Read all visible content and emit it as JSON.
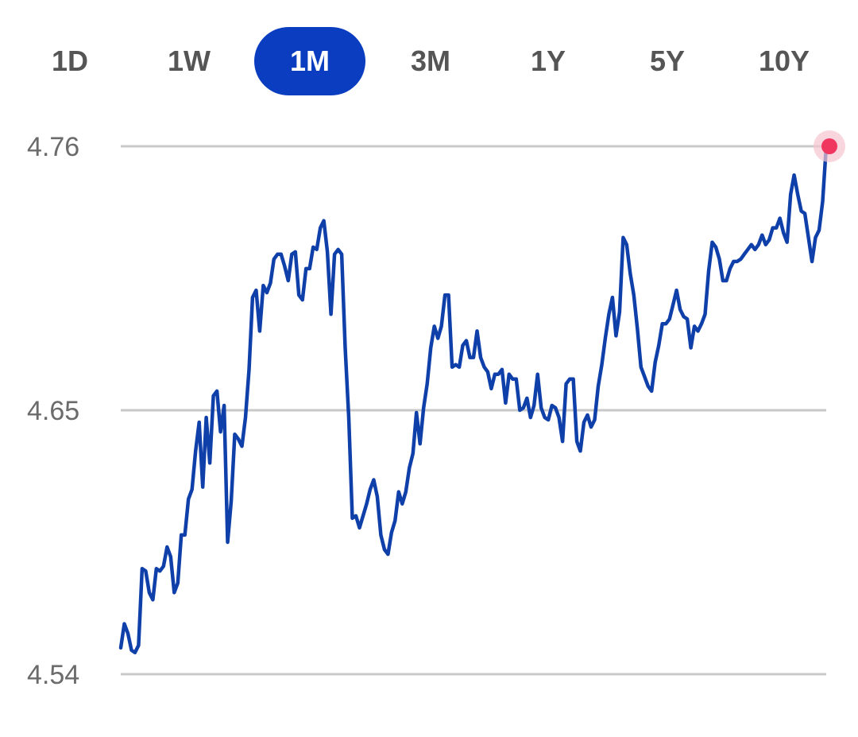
{
  "range_tabs": [
    {
      "label": "1D",
      "active": false
    },
    {
      "label": "1W",
      "active": false
    },
    {
      "label": "1M",
      "active": true
    },
    {
      "label": "3M",
      "active": false
    },
    {
      "label": "1Y",
      "active": false
    },
    {
      "label": "5Y",
      "active": false
    },
    {
      "label": "10Y",
      "active": false
    }
  ],
  "colors": {
    "accent": "#0a3dbf",
    "line": "#0f3fa8",
    "gridline": "#c8c8c8",
    "marker": "#f0365f",
    "marker_halo": "#f7c4cf"
  },
  "chart_data": {
    "type": "line",
    "title": "",
    "xlabel": "",
    "ylabel": "",
    "ylim": [
      4.54,
      4.76
    ],
    "yticks": [
      "4.76",
      "4.65",
      "4.54"
    ],
    "grid": "horizontal",
    "legend": "none",
    "highlight": "last point",
    "series": [
      {
        "values": [
          4.551,
          4.561,
          4.557,
          4.55,
          4.549,
          4.552,
          4.584,
          4.583,
          4.574,
          4.571,
          4.584,
          4.583,
          4.585,
          4.593,
          4.589,
          4.574,
          4.578,
          4.598,
          4.598,
          4.613,
          4.617,
          4.633,
          4.645,
          4.618,
          4.647,
          4.628,
          4.656,
          4.658,
          4.641,
          4.652,
          4.595,
          4.612,
          4.64,
          4.638,
          4.635,
          4.647,
          4.667,
          4.697,
          4.7,
          4.683,
          4.702,
          4.699,
          4.703,
          4.713,
          4.715,
          4.715,
          4.71,
          4.704,
          4.715,
          4.716,
          4.698,
          4.696,
          4.709,
          4.709,
          4.718,
          4.717,
          4.726,
          4.729,
          4.716,
          4.69,
          4.715,
          4.717,
          4.715,
          4.676,
          4.647,
          4.605,
          4.606,
          4.601,
          4.606,
          4.611,
          4.617,
          4.621,
          4.614,
          4.598,
          4.592,
          4.59,
          4.599,
          4.604,
          4.616,
          4.611,
          4.616,
          4.626,
          4.632,
          4.649,
          4.636,
          4.651,
          4.661,
          4.676,
          4.685,
          4.68,
          4.685,
          4.698,
          4.698,
          4.668,
          4.669,
          4.668,
          4.677,
          4.679,
          4.672,
          4.672,
          4.683,
          4.672,
          4.668,
          4.666,
          4.659,
          4.665,
          4.665,
          4.667,
          4.653,
          4.665,
          4.663,
          4.663,
          4.65,
          4.651,
          4.655,
          4.647,
          4.652,
          4.665,
          4.651,
          4.647,
          4.646,
          4.652,
          4.651,
          4.647,
          4.637,
          4.661,
          4.663,
          4.663,
          4.637,
          4.633,
          4.645,
          4.648,
          4.643,
          4.646,
          4.66,
          4.669,
          4.68,
          4.69,
          4.697,
          4.681,
          4.691,
          4.722,
          4.719,
          4.707,
          4.698,
          4.684,
          4.668,
          4.664,
          4.66,
          4.658,
          4.67,
          4.677,
          4.686,
          4.686,
          4.688,
          4.694,
          4.7,
          4.692,
          4.689,
          4.688,
          4.676,
          4.685,
          4.683,
          4.686,
          4.69,
          4.708,
          4.72,
          4.718,
          4.713,
          4.704,
          4.704,
          4.709,
          4.712,
          4.712,
          4.713,
          4.715,
          4.717,
          4.719,
          4.717,
          4.719,
          4.723,
          4.719,
          4.721,
          4.726,
          4.726,
          4.73,
          4.724,
          4.72,
          4.74,
          4.748,
          4.74,
          4.733,
          4.732,
          4.722,
          4.712,
          4.722,
          4.725,
          4.737,
          4.76
        ]
      }
    ]
  }
}
